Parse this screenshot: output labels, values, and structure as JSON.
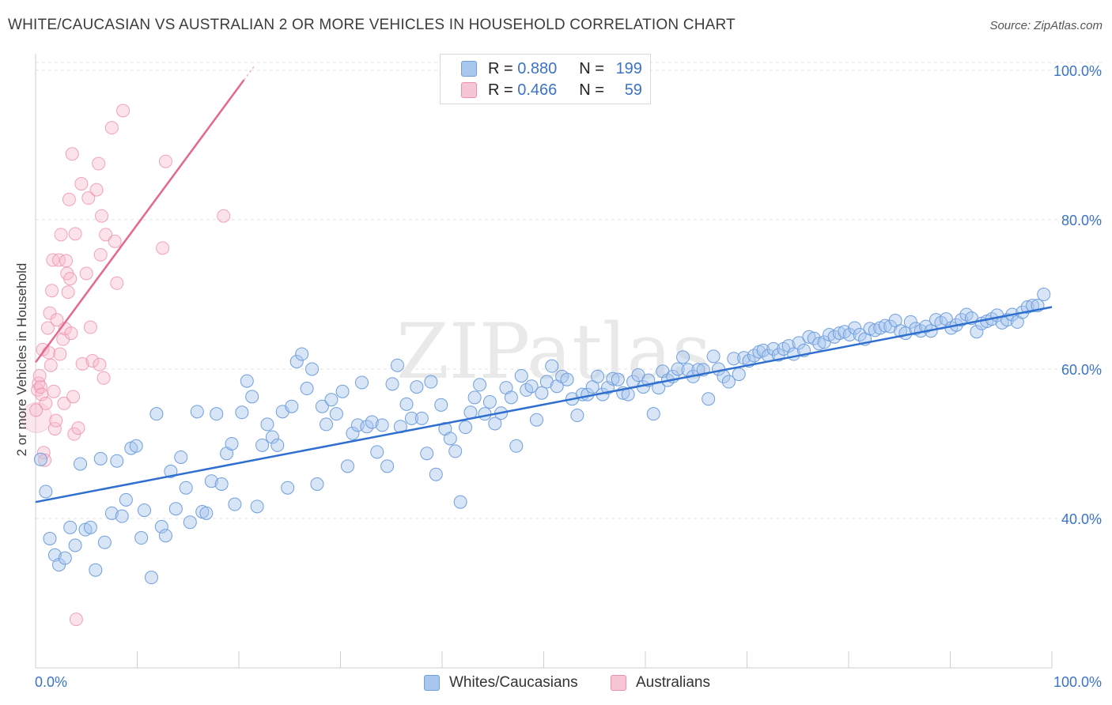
{
  "title": "WHITE/CAUCASIAN VS AUSTRALIAN 2 OR MORE VEHICLES IN HOUSEHOLD CORRELATION CHART",
  "source": "Source: ZipAtlas.com",
  "watermark": "ZIPatlas",
  "legend": {
    "rows": [
      {
        "r_label": "R =",
        "r_value": "0.880",
        "n_label": "N =",
        "n_value": "199"
      },
      {
        "r_label": "R =",
        "r_value": "0.466",
        "n_label": "N =",
        "n_value": "59"
      }
    ]
  },
  "bottom_legend": {
    "series1": "Whites/Caucasians",
    "series2": "Australians"
  },
  "colors": {
    "blue_fill": "#a8c6ee",
    "blue_stroke": "#6f9fdc",
    "blue_line": "#2f6fcf",
    "pink_fill": "#f7b8cb",
    "pink_stroke": "#ec8fab",
    "pink_line": "#e5678f",
    "axis_label": "#3b73c5",
    "grid": "#e3e3e3"
  },
  "chart_data": {
    "type": "scatter",
    "title": "WHITE/CAUCASIAN VS AUSTRALIAN 2 OR MORE VEHICLES IN HOUSEHOLD CORRELATION CHART",
    "xlabel": "",
    "ylabel": "2 or more Vehicles in Household",
    "xlim": [
      0,
      100
    ],
    "ylim": [
      20,
      102
    ],
    "x_tick_labels": [
      "0.0%",
      "100.0%"
    ],
    "y_ticks": [
      40,
      60,
      80,
      100
    ],
    "y_tick_labels": [
      "40.0%",
      "60.0%",
      "80.0%",
      "100.0%"
    ],
    "grid": true,
    "series": [
      {
        "name": "Whites/Caucasians",
        "r": 0.88,
        "n": 199,
        "trend": {
          "x0": 0,
          "y0": 42.2,
          "x1": 100,
          "y1": 68.3
        },
        "points": [
          [
            0.5,
            47.9
          ],
          [
            1,
            43.6
          ],
          [
            1.4,
            37.3
          ],
          [
            1.9,
            35.1
          ],
          [
            2.3,
            33.8
          ],
          [
            2.9,
            34.7
          ],
          [
            3.4,
            38.8
          ],
          [
            3.9,
            36.4
          ],
          [
            4.4,
            47.3
          ],
          [
            4.9,
            38.5
          ],
          [
            5.4,
            38.8
          ],
          [
            5.9,
            33.1
          ],
          [
            6.4,
            48.0
          ],
          [
            6.8,
            36.8
          ],
          [
            7.5,
            40.7
          ],
          [
            8,
            47.7
          ],
          [
            8.5,
            40.3
          ],
          [
            8.9,
            42.5
          ],
          [
            9.4,
            49.4
          ],
          [
            9.9,
            49.7
          ],
          [
            10.4,
            37.4
          ],
          [
            10.7,
            41.1
          ],
          [
            11.4,
            32.1
          ],
          [
            11.9,
            54.0
          ],
          [
            12.4,
            38.9
          ],
          [
            12.8,
            37.7
          ],
          [
            13.3,
            46.3
          ],
          [
            13.8,
            41.3
          ],
          [
            14.3,
            48.2
          ],
          [
            14.8,
            44.1
          ],
          [
            15.2,
            39.5
          ],
          [
            15.9,
            54.3
          ],
          [
            16.4,
            40.9
          ],
          [
            16.8,
            40.7
          ],
          [
            17.3,
            45.0
          ],
          [
            17.8,
            54.0
          ],
          [
            18.3,
            44.6
          ],
          [
            18.8,
            48.7
          ],
          [
            19.3,
            50.0
          ],
          [
            19.6,
            41.9
          ],
          [
            20.3,
            54.2
          ],
          [
            20.8,
            58.4
          ],
          [
            21.3,
            56.3
          ],
          [
            21.8,
            41.6
          ],
          [
            22.3,
            49.8
          ],
          [
            22.8,
            52.6
          ],
          [
            23.3,
            50.9
          ],
          [
            23.8,
            49.8
          ],
          [
            24.3,
            54.3
          ],
          [
            24.8,
            44.1
          ],
          [
            25.2,
            55.0
          ],
          [
            25.7,
            61.0
          ],
          [
            26.2,
            62.0
          ],
          [
            26.7,
            57.4
          ],
          [
            27.2,
            60.0
          ],
          [
            27.7,
            44.6
          ],
          [
            28.2,
            55.0
          ],
          [
            28.6,
            52.6
          ],
          [
            29.1,
            55.9
          ],
          [
            29.6,
            54.0
          ],
          [
            30.2,
            57.0
          ],
          [
            30.7,
            47.0
          ],
          [
            31.2,
            51.4
          ],
          [
            31.7,
            52.5
          ],
          [
            32.1,
            58.2
          ],
          [
            32.6,
            52.3
          ],
          [
            33.1,
            52.9
          ],
          [
            33.6,
            48.9
          ],
          [
            34.1,
            52.5
          ],
          [
            34.6,
            47.0
          ],
          [
            35.1,
            58.0
          ],
          [
            35.6,
            60.5
          ],
          [
            35.9,
            52.3
          ],
          [
            36.5,
            55.3
          ],
          [
            37,
            53.4
          ],
          [
            37.5,
            57.6
          ],
          [
            38,
            53.4
          ],
          [
            38.5,
            48.7
          ],
          [
            38.9,
            58.3
          ],
          [
            39.4,
            45.9
          ],
          [
            39.9,
            55.2
          ],
          [
            40.3,
            52.0
          ],
          [
            40.8,
            50.7
          ],
          [
            41.3,
            49.0
          ],
          [
            41.8,
            42.2
          ],
          [
            42.3,
            52.2
          ],
          [
            42.8,
            54.2
          ],
          [
            43.2,
            56.2
          ],
          [
            43.7,
            57.9
          ],
          [
            44.2,
            54.0
          ],
          [
            44.7,
            55.6
          ],
          [
            45.2,
            52.7
          ],
          [
            45.8,
            54.1
          ],
          [
            46.3,
            57.5
          ],
          [
            46.8,
            56.2
          ],
          [
            47.3,
            49.7
          ],
          [
            47.8,
            59.1
          ],
          [
            48.3,
            57.2
          ],
          [
            48.8,
            57.7
          ],
          [
            49.3,
            53.2
          ],
          [
            49.8,
            56.8
          ],
          [
            50.3,
            58.3
          ],
          [
            50.8,
            60.4
          ],
          [
            51.3,
            57.7
          ],
          [
            51.8,
            59.0
          ],
          [
            52.3,
            58.6
          ],
          [
            52.8,
            56.0
          ],
          [
            53.3,
            53.8
          ],
          [
            53.8,
            56.6
          ],
          [
            54.3,
            56.6
          ],
          [
            54.8,
            57.6
          ],
          [
            55.3,
            59.0
          ],
          [
            55.8,
            56.6
          ],
          [
            56.3,
            57.5
          ],
          [
            56.8,
            58.7
          ],
          [
            57.3,
            58.6
          ],
          [
            57.8,
            56.8
          ],
          [
            58.3,
            56.6
          ],
          [
            58.8,
            58.3
          ],
          [
            59.3,
            59.2
          ],
          [
            59.8,
            57.6
          ],
          [
            60.3,
            58.5
          ],
          [
            60.8,
            54.0
          ],
          [
            61.3,
            57.5
          ],
          [
            61.7,
            59.7
          ],
          [
            62.2,
            58.5
          ],
          [
            62.7,
            59.0
          ],
          [
            63.2,
            60.0
          ],
          [
            63.7,
            61.6
          ],
          [
            64.2,
            59.9
          ],
          [
            64.7,
            59.0
          ],
          [
            65.2,
            59.9
          ],
          [
            65.7,
            59.9
          ],
          [
            66.2,
            56.0
          ],
          [
            66.7,
            61.7
          ],
          [
            67.2,
            60.0
          ],
          [
            67.7,
            59.0
          ],
          [
            68.2,
            58.3
          ],
          [
            68.7,
            61.4
          ],
          [
            69.2,
            59.3
          ],
          [
            69.7,
            61.5
          ],
          [
            70.2,
            61.1
          ],
          [
            70.7,
            61.8
          ],
          [
            71.2,
            62.3
          ],
          [
            71.6,
            62.5
          ],
          [
            72.1,
            61.8
          ],
          [
            72.6,
            62.7
          ],
          [
            73.1,
            61.9
          ],
          [
            73.6,
            62.7
          ],
          [
            74.1,
            63.1
          ],
          [
            74.6,
            62.0
          ],
          [
            75.1,
            63.5
          ],
          [
            75.6,
            62.5
          ],
          [
            76.1,
            64.3
          ],
          [
            76.6,
            64.1
          ],
          [
            77.1,
            63.4
          ],
          [
            77.6,
            63.6
          ],
          [
            78.1,
            64.6
          ],
          [
            78.6,
            64.3
          ],
          [
            79.1,
            64.8
          ],
          [
            79.6,
            65.0
          ],
          [
            80.1,
            64.6
          ],
          [
            80.6,
            65.5
          ],
          [
            81.1,
            64.6
          ],
          [
            81.6,
            64.0
          ],
          [
            82.1,
            65.4
          ],
          [
            82.6,
            65.2
          ],
          [
            83.1,
            65.5
          ],
          [
            83.6,
            65.8
          ],
          [
            84.1,
            65.7
          ],
          [
            84.6,
            66.5
          ],
          [
            85.1,
            65.1
          ],
          [
            85.6,
            64.8
          ],
          [
            86.1,
            66.3
          ],
          [
            86.6,
            65.4
          ],
          [
            87.1,
            65.1
          ],
          [
            87.6,
            65.7
          ],
          [
            88.1,
            65.1
          ],
          [
            88.6,
            66.6
          ],
          [
            89.1,
            66.2
          ],
          [
            89.6,
            66.7
          ],
          [
            90.1,
            65.5
          ],
          [
            90.6,
            65.9
          ],
          [
            91.1,
            66.6
          ],
          [
            91.6,
            67.3
          ],
          [
            92.1,
            66.8
          ],
          [
            92.6,
            65.0
          ],
          [
            93.1,
            66.1
          ],
          [
            93.6,
            66.4
          ],
          [
            94.1,
            66.7
          ],
          [
            94.6,
            67.2
          ],
          [
            95.1,
            66.2
          ],
          [
            95.6,
            66.6
          ],
          [
            96.1,
            67.3
          ],
          [
            96.6,
            66.3
          ],
          [
            97.1,
            67.6
          ],
          [
            97.6,
            68.3
          ],
          [
            98.1,
            68.5
          ],
          [
            98.6,
            68.5
          ],
          [
            99.2,
            70.0
          ]
        ]
      },
      {
        "name": "Australians",
        "r": 0.466,
        "n": 59,
        "trend": {
          "x0": 0,
          "y0": 60.9,
          "x1": 20.5,
          "y1": 98.7
        },
        "trend_dashed_to": {
          "x": 21.5,
          "y": 100.5
        },
        "points": [
          [
            0.1,
            53.5
          ],
          [
            0.2,
            57.2
          ],
          [
            0.3,
            58.1
          ],
          [
            0.4,
            59.1
          ],
          [
            0.5,
            57.6
          ],
          [
            0.6,
            56.6
          ],
          [
            0.7,
            62.6
          ],
          [
            0.8,
            48.8
          ],
          [
            0.9,
            47.8
          ],
          [
            1,
            55.4
          ],
          [
            1.2,
            65.5
          ],
          [
            1.3,
            62.2
          ],
          [
            1.4,
            67.5
          ],
          [
            1.5,
            60.5
          ],
          [
            1.6,
            70.5
          ],
          [
            1.7,
            74.6
          ],
          [
            1.8,
            57.0
          ],
          [
            1.9,
            52.0
          ],
          [
            2,
            53.1
          ],
          [
            2.1,
            66.6
          ],
          [
            2.3,
            74.6
          ],
          [
            2.4,
            62.0
          ],
          [
            2.5,
            78.0
          ],
          [
            2.7,
            64.0
          ],
          [
            2.8,
            55.4
          ],
          [
            2.9,
            65.4
          ],
          [
            3,
            74.5
          ],
          [
            3.1,
            72.8
          ],
          [
            3.2,
            70.3
          ],
          [
            3.3,
            82.7
          ],
          [
            3.4,
            72.1
          ],
          [
            3.5,
            64.8
          ],
          [
            3.6,
            88.8
          ],
          [
            3.7,
            56.3
          ],
          [
            3.8,
            51.3
          ],
          [
            3.9,
            78.1
          ],
          [
            4,
            26.5
          ],
          [
            4.2,
            52.1
          ],
          [
            4.5,
            84.8
          ],
          [
            4.6,
            60.7
          ],
          [
            5,
            72.8
          ],
          [
            5.2,
            82.9
          ],
          [
            5.4,
            65.6
          ],
          [
            5.6,
            61.1
          ],
          [
            6,
            84.0
          ],
          [
            6.2,
            87.5
          ],
          [
            6.3,
            60.6
          ],
          [
            6.4,
            75.3
          ],
          [
            6.5,
            80.5
          ],
          [
            6.7,
            58.8
          ],
          [
            6.9,
            78.0
          ],
          [
            7.5,
            92.3
          ],
          [
            7.8,
            77.1
          ],
          [
            8,
            71.5
          ],
          [
            8.6,
            94.6
          ],
          [
            12.5,
            76.2
          ],
          [
            12.8,
            87.8
          ],
          [
            18.5,
            80.5
          ],
          [
            0.05,
            54.5
          ]
        ]
      }
    ]
  }
}
